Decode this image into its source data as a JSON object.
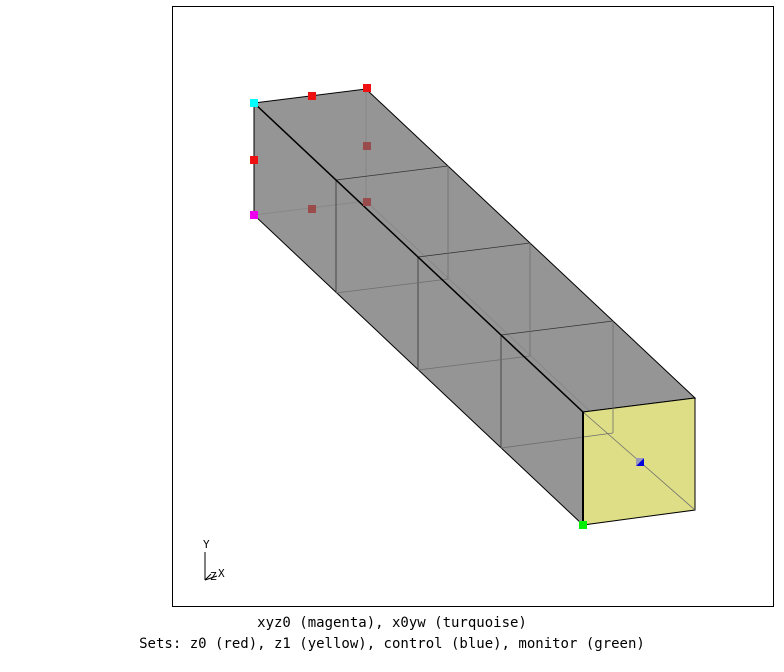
{
  "viewer": {
    "axes": {
      "y_label": "Y",
      "z_label": "Z",
      "x_label": "X"
    }
  },
  "caption": {
    "line1": "xyz0 (magenta), x0yw (turquoise)",
    "line2": "Sets: z0 (red), z1 (yellow), control (blue), monitor (green)"
  },
  "colors": {
    "body_fill": "#8c8c8c",
    "z1_face": "#dede86",
    "magenta": "#ee00ee",
    "turquoise": "#00ffff",
    "red": "#ee1111",
    "blue": "#0000dd",
    "green": "#00ee00",
    "edge": "#000000"
  },
  "sets": [
    {
      "name": "z0",
      "color_name": "red"
    },
    {
      "name": "z1",
      "color_name": "yellow"
    },
    {
      "name": "control",
      "color_name": "blue"
    },
    {
      "name": "monitor",
      "color_name": "green"
    }
  ],
  "markers": [
    {
      "id": "xyz0",
      "color_name": "magenta"
    },
    {
      "id": "x0yw",
      "color_name": "turquoise"
    }
  ]
}
